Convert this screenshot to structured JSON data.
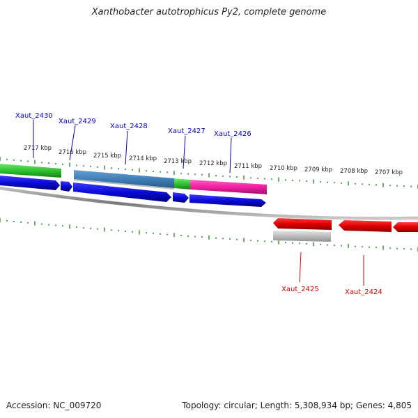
{
  "title": "Xanthobacter autotrophicus Py2, complete genome",
  "accession_text": "Accession: NC_009720",
  "summary_text": "Topology: circular; Length: 5,308,934 bp; Genes: 4,805",
  "colors": {
    "forward_label": "#0000cc",
    "reverse_label": "#dd0000",
    "tick": "#2d8a2d",
    "backbone": "#888888"
  },
  "scale_labels": [
    "2717 kbp",
    "2716 kbp",
    "2715 kbp",
    "2714 kbp",
    "2713 kbp",
    "2712 kbp",
    "2711 kbp",
    "2710 kbp",
    "2709 kbp",
    "2708 kbp",
    "2707 kbp"
  ],
  "genes_forward": [
    {
      "label": "Xaut_2430",
      "color": "blue"
    },
    {
      "label": "Xaut_2429",
      "color": "blue"
    },
    {
      "label": "Xaut_2428",
      "color": "blue"
    },
    {
      "label": "Xaut_2427",
      "color": "blue"
    },
    {
      "label": "Xaut_2426",
      "color": "blue"
    }
  ],
  "genes_reverse": [
    {
      "label": "Xaut_2425",
      "color": "red"
    },
    {
      "label": "Xaut_2424",
      "color": "red"
    }
  ]
}
